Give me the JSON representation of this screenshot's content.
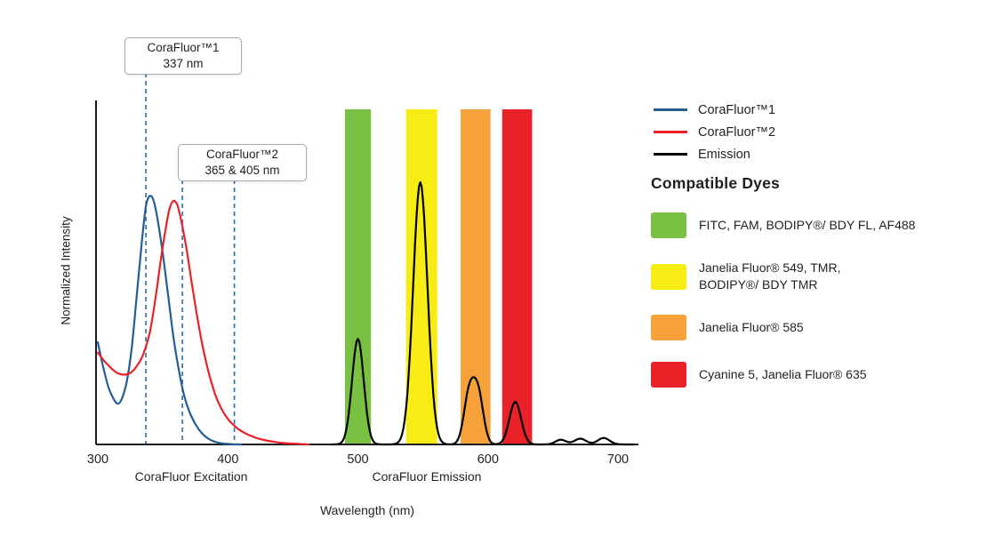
{
  "chart": {
    "callouts": [
      {
        "line1": "CoraFluor™1",
        "line2": "337 nm"
      },
      {
        "line1": "CoraFluor™2",
        "line2": "365 & 405 nm"
      }
    ]
  },
  "legend": {
    "items": [
      {
        "label": "CoraFluor™1",
        "color": "#235e94"
      },
      {
        "label": "CoraFluor™2",
        "color": "#e92128"
      },
      {
        "label": "Emission",
        "color": "#000000"
      }
    ]
  },
  "compatible_dyes": {
    "heading": "Compatible Dyes",
    "items": [
      {
        "name": "green",
        "color": "#7ac143",
        "label": "FITC, FAM, BODIPY®/ BDY FL, AF488"
      },
      {
        "name": "yellow",
        "color": "#f7ec13",
        "label": "Janelia Fluor® 549, TMR,\nBODIPY®/ BDY TMR"
      },
      {
        "name": "orange",
        "color": "#f6a13a",
        "label": "Janelia Fluor® 585"
      },
      {
        "name": "red",
        "color": "#e92128",
        "label": "Cyanine 5, Janelia Fluor® 635"
      }
    ]
  },
  "chart_data": {
    "type": "line",
    "title": "",
    "xlabel": "Wavelength (nm)",
    "ylabel": "Normalized Intensity",
    "xlim": [
      300,
      716
    ],
    "ylim": [
      0,
      1
    ],
    "x_ticks": [
      300,
      400,
      500,
      600,
      700
    ],
    "x_section_labels": [
      {
        "text": "CoraFluor Excitation",
        "center_nm": 372
      },
      {
        "text": "CoraFluor Emission",
        "center_nm": 553
      }
    ],
    "excitation_markers_nm": [
      337,
      365,
      405
    ],
    "bands": [
      {
        "name": "green",
        "x0": 490,
        "x1": 510,
        "color": "#7ac143"
      },
      {
        "name": "yellow",
        "x0": 537,
        "x1": 561,
        "color": "#f7ec13"
      },
      {
        "name": "orange",
        "x0": 579,
        "x1": 602,
        "color": "#f6a13a"
      },
      {
        "name": "red",
        "x0": 611,
        "x1": 634,
        "color": "#e92128"
      }
    ],
    "series": [
      {
        "name": "CoraFluor™1",
        "role": "excitation",
        "color": "#235e94",
        "peak_nm": 340,
        "peak_intensity": 0.73,
        "points": [
          [
            300,
            0.3
          ],
          [
            304,
            0.23
          ],
          [
            308,
            0.17
          ],
          [
            312,
            0.135
          ],
          [
            315,
            0.12
          ],
          [
            318,
            0.13
          ],
          [
            322,
            0.18
          ],
          [
            326,
            0.28
          ],
          [
            330,
            0.44
          ],
          [
            334,
            0.6
          ],
          [
            337,
            0.7
          ],
          [
            340,
            0.73
          ],
          [
            343,
            0.715
          ],
          [
            346,
            0.66
          ],
          [
            350,
            0.56
          ],
          [
            354,
            0.44
          ],
          [
            358,
            0.32
          ],
          [
            362,
            0.225
          ],
          [
            366,
            0.15
          ],
          [
            370,
            0.1
          ],
          [
            375,
            0.06
          ],
          [
            380,
            0.033
          ],
          [
            385,
            0.017
          ],
          [
            390,
            0.008
          ],
          [
            396,
            0.003
          ],
          [
            402,
            0.001
          ],
          [
            410,
            0.0
          ]
        ]
      },
      {
        "name": "CoraFluor™2",
        "role": "excitation",
        "color": "#e92128",
        "peak_nm": 358,
        "peak_intensity": 0.72,
        "points": [
          [
            300,
            0.27
          ],
          [
            305,
            0.245
          ],
          [
            310,
            0.225
          ],
          [
            315,
            0.21
          ],
          [
            320,
            0.205
          ],
          [
            325,
            0.21
          ],
          [
            330,
            0.23
          ],
          [
            335,
            0.265
          ],
          [
            340,
            0.33
          ],
          [
            344,
            0.42
          ],
          [
            348,
            0.53
          ],
          [
            352,
            0.63
          ],
          [
            355,
            0.69
          ],
          [
            358,
            0.715
          ],
          [
            361,
            0.705
          ],
          [
            364,
            0.66
          ],
          [
            368,
            0.58
          ],
          [
            372,
            0.48
          ],
          [
            376,
            0.385
          ],
          [
            380,
            0.3
          ],
          [
            385,
            0.215
          ],
          [
            390,
            0.15
          ],
          [
            395,
            0.105
          ],
          [
            400,
            0.075
          ],
          [
            405,
            0.055
          ],
          [
            410,
            0.04
          ],
          [
            416,
            0.028
          ],
          [
            422,
            0.019
          ],
          [
            428,
            0.013
          ],
          [
            435,
            0.008
          ],
          [
            443,
            0.004
          ],
          [
            452,
            0.002
          ],
          [
            462,
            0.0
          ]
        ]
      },
      {
        "name": "Emission",
        "role": "emission",
        "color": "#000000",
        "range": [
          480,
          712
        ],
        "peaks": [
          {
            "nm": 500,
            "intensity": 0.31
          },
          {
            "nm": 548,
            "intensity": 0.77
          },
          {
            "nm": 589,
            "intensity": 0.2
          },
          {
            "nm": 621,
            "intensity": 0.13
          },
          {
            "nm": 656,
            "intensity": 0.015
          },
          {
            "nm": 671,
            "intensity": 0.018
          },
          {
            "nm": 689,
            "intensity": 0.02
          }
        ],
        "components": [
          {
            "mu": 500,
            "sigma": 4.5,
            "amp": 0.31
          },
          {
            "mu": 548,
            "sigma": 5.5,
            "amp": 0.77
          },
          {
            "mu": 585.5,
            "sigma": 4.0,
            "amp": 0.145
          },
          {
            "mu": 592.5,
            "sigma": 4.0,
            "amp": 0.145
          },
          {
            "mu": 621,
            "sigma": 4.5,
            "amp": 0.125
          },
          {
            "mu": 656,
            "sigma": 4.0,
            "amp": 0.014
          },
          {
            "mu": 671,
            "sigma": 4.5,
            "amp": 0.017
          },
          {
            "mu": 689,
            "sigma": 4.5,
            "amp": 0.019
          }
        ]
      }
    ]
  }
}
